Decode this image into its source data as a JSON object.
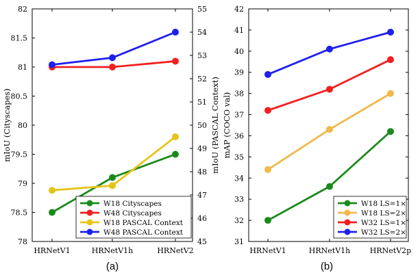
{
  "chart_data": [
    {
      "type": "line",
      "caption": "(a)",
      "categories": [
        "HRNetV1",
        "HRNetV1h",
        "HRNetV2"
      ],
      "ylabel_left": "mIoU (Cityscapes)",
      "ylabel_right": "mIoU (PASCAL Context)",
      "ylim_left": [
        78,
        82
      ],
      "yticks_left": [
        "78",
        "78.5",
        "79",
        "79.5",
        "80",
        "80.5",
        "81",
        "81.5",
        "82"
      ],
      "ylim_right": [
        45,
        55
      ],
      "yticks_right": [
        "45",
        "46",
        "47",
        "48",
        "49",
        "50",
        "51",
        "52",
        "53",
        "54",
        "55"
      ],
      "legend_position": "bottom-right",
      "series": [
        {
          "name": "W18 Cityscapes",
          "axis": "left",
          "color": "#1a8a1a",
          "values": [
            78.5,
            79.1,
            79.5
          ]
        },
        {
          "name": "W48 Cityscapes",
          "axis": "left",
          "color": "#f21f1f",
          "values": [
            81.0,
            81.0,
            81.1
          ]
        },
        {
          "name": "W18 PASCAL Context",
          "axis": "right",
          "color": "#e5c417",
          "values": [
            47.2,
            47.4,
            49.5
          ]
        },
        {
          "name": "W48 PASCAL Context",
          "axis": "right",
          "color": "#1f1fee",
          "values": [
            52.6,
            52.9,
            54.0
          ]
        }
      ]
    },
    {
      "type": "line",
      "caption": "(b)",
      "categories": [
        "HRNetV1",
        "HRNetV1h",
        "HRNetV2p"
      ],
      "ylabel": "mAP (COCO val)",
      "ylim": [
        31,
        42
      ],
      "yticks": [
        "31",
        "32",
        "33",
        "34",
        "35",
        "36",
        "37",
        "38",
        "39",
        "40",
        "41",
        "42"
      ],
      "legend_position": "bottom-right",
      "series": [
        {
          "name": "W18 LS=1×",
          "color": "#1a8a1a",
          "values": [
            32.0,
            33.6,
            36.2
          ]
        },
        {
          "name": "W18 LS=2×",
          "color": "#f0b94a",
          "values": [
            34.4,
            36.3,
            38.0
          ]
        },
        {
          "name": "W32 LS=1×",
          "color": "#f21f1f",
          "values": [
            37.2,
            38.2,
            39.6
          ]
        },
        {
          "name": "W32 LS=2×",
          "color": "#1f1fee",
          "values": [
            38.9,
            40.1,
            40.9
          ]
        }
      ]
    }
  ]
}
